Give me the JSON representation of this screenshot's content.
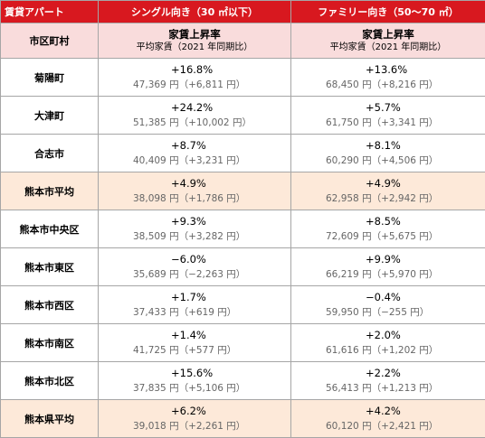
{
  "header": {
    "area_col": "賃貸アパート",
    "single_col": "シングル向き（30 ㎡以下）",
    "family_col": "ファミリー向き（50〜70 ㎡）"
  },
  "subheader": {
    "area_label": "市区町村",
    "single_main": "家賃上昇率",
    "single_sub": "平均家賃（2021 年同期比）",
    "family_main": "家賃上昇率",
    "family_sub": "平均家賃（2021 年同期比）"
  },
  "rows": [
    {
      "area": "菊陽町",
      "single_rate": "+16.8%",
      "single_rent": "47,369 円（+6,811 円）",
      "family_rate": "+13.6%",
      "family_rent": "68,450 円（+8,216 円）"
    },
    {
      "area": "大津町",
      "single_rate": "+24.2%",
      "single_rent": "51,385 円（+10,002 円）",
      "family_rate": "+5.7%",
      "family_rent": "61,750 円（+3,341 円）"
    },
    {
      "area": "合志市",
      "single_rate": "+8.7%",
      "single_rent": "40,409 円（+3,231 円）",
      "family_rate": "+8.1%",
      "family_rent": "60,290 円（+4,506 円）"
    },
    {
      "area": "熊本市平均",
      "single_rate": "+4.9%",
      "single_rent": "38,098 円（+1,786 円）",
      "family_rate": "+4.9%",
      "family_rent": "62,958 円（+2,942 円）"
    },
    {
      "area": "熊本市中央区",
      "single_rate": "+9.3%",
      "single_rent": "38,509 円（+3,282 円）",
      "family_rate": "+8.5%",
      "family_rent": "72,609 円（+5,675 円）"
    },
    {
      "area": "熊本市東区",
      "single_rate": "−6.0%",
      "single_rent": "35,689 円（−2,263 円）",
      "family_rate": "+9.9%",
      "family_rent": "66,219 円（+5,970 円）"
    },
    {
      "area": "熊本市西区",
      "single_rate": "+1.7%",
      "single_rent": "37,433 円（+619 円）",
      "family_rate": "−0.4%",
      "family_rent": "59,950 円（−255 円）"
    },
    {
      "area": "熊本市南区",
      "single_rate": "+1.4%",
      "single_rent": "41,725 円（+577 円）",
      "family_rate": "+2.0%",
      "family_rent": "61,616 円（+1,202 円）"
    },
    {
      "area": "熊本市北区",
      "single_rate": "+15.6%",
      "single_rent": "37,835 円（+5,106 円）",
      "family_rate": "+2.2%",
      "family_rent": "56,413 円（+1,213 円）"
    },
    {
      "area": "熊本県平均",
      "single_rate": "+6.2%",
      "single_rent": "39,018 円（+2,261 円）",
      "family_rate": "+4.2%",
      "family_rent": "60,120 円（+2,421 円）"
    }
  ],
  "colors": {
    "header_bg": "#d8181f",
    "subheader_bg": "#f9dcdc",
    "average_row_bg": "#fde9d9"
  }
}
